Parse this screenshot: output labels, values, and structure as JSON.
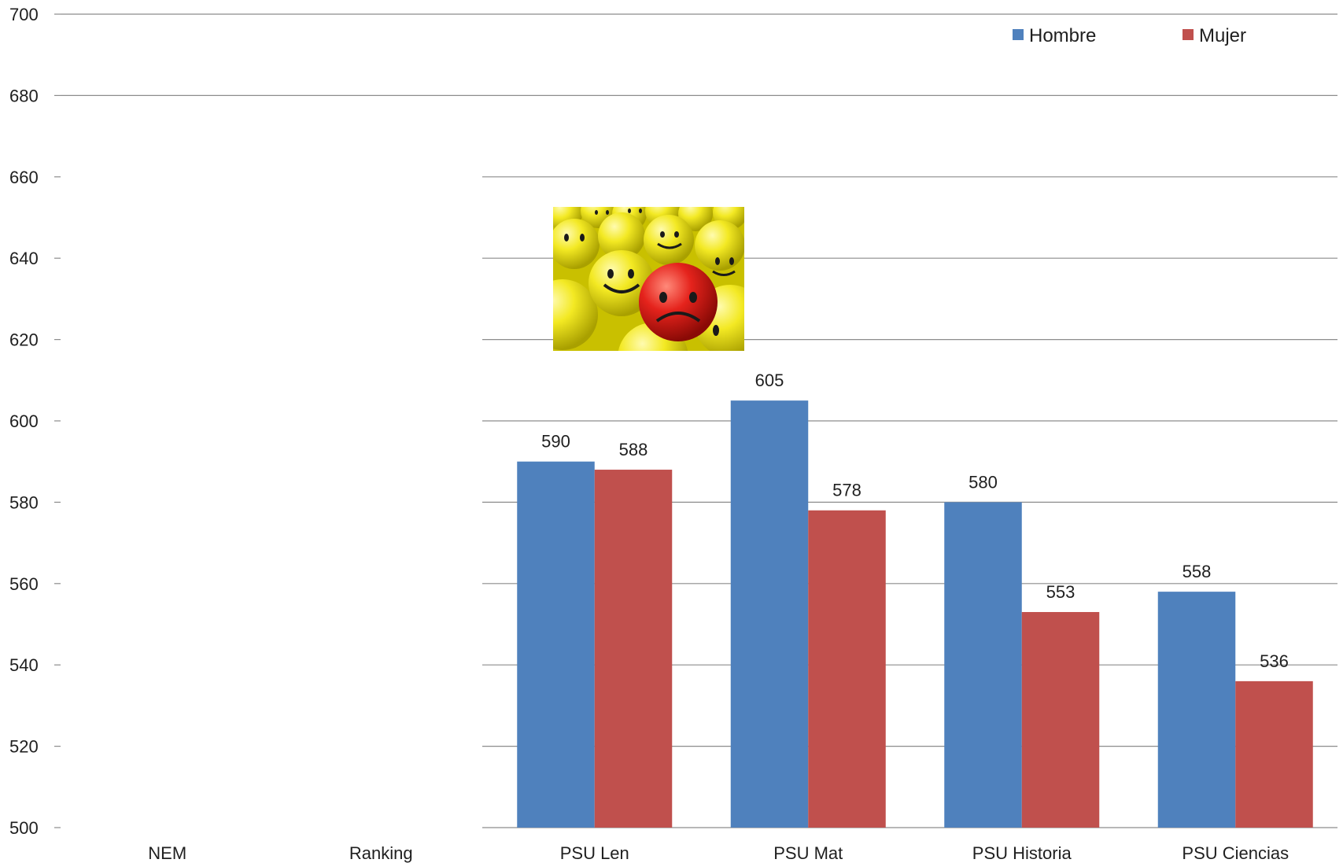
{
  "chart_data": {
    "type": "bar",
    "categories": [
      "NEM",
      "Ranking",
      "PSU Len",
      "PSU Mat",
      "PSU Historia",
      "PSU Ciencias"
    ],
    "series": [
      {
        "name": "Hombre",
        "color": "#4f81bd",
        "values": [
          null,
          null,
          590,
          605,
          580,
          558
        ]
      },
      {
        "name": "Mujer",
        "color": "#c0504d",
        "values": [
          null,
          null,
          588,
          578,
          553,
          536
        ]
      }
    ],
    "yticks": [
      500,
      520,
      540,
      560,
      580,
      600,
      620,
      640,
      660,
      680,
      700
    ],
    "ylim": [
      500,
      700
    ],
    "grid": true,
    "legend_position": "top-right",
    "data_labels": true,
    "title": "",
    "xlabel": "",
    "ylabel": ""
  },
  "overlay_image": {
    "icon": "smiley-faces-photo",
    "description_colors": [
      "#f2e81d",
      "#e0201b"
    ]
  }
}
